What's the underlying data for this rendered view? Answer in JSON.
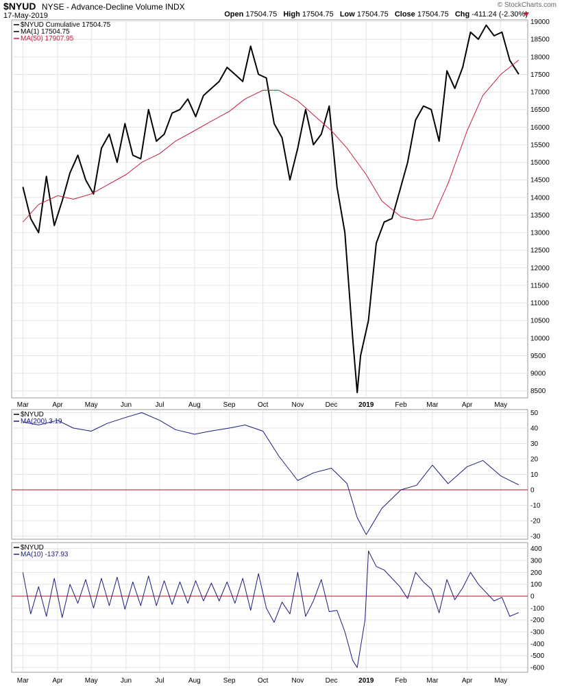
{
  "header": {
    "symbol": "$NYUD",
    "description": "NYSE - Advance-Decline Volume INDX",
    "date": "17-May-2019",
    "open_label": "Open",
    "open": "17504.75",
    "high_label": "High",
    "high": "17504.75",
    "low_label": "Low",
    "low": "17504.75",
    "close_label": "Close",
    "close": "17504.75",
    "chg_label": "Chg",
    "chg": "-411.24 (-2.30%)",
    "brand": "© StockCharts.com"
  },
  "colors": {
    "price": "#000000",
    "ma50": "#cc1a3a",
    "indicator": "#1a1a80",
    "zero_line": "#b0102a",
    "grid": "#e4e4e4",
    "frame": "#999999"
  },
  "chart_data": [
    {
      "type": "line",
      "panel": "price",
      "legend": [
        "$NYUD Cumulative 17504.75",
        "MA(1) 17504.75",
        "MA(50) 17907.95"
      ],
      "x_axis_labels": [
        "Mar",
        "Apr",
        "May",
        "Jun",
        "Jul",
        "Aug",
        "Sep",
        "Oct",
        "Nov",
        "Dec",
        "2019",
        "Feb",
        "Mar",
        "Apr",
        "May"
      ],
      "y_ticks": [
        8500,
        9000,
        9500,
        10000,
        10500,
        11000,
        11500,
        12000,
        12500,
        13000,
        13500,
        14000,
        14500,
        15000,
        15500,
        16000,
        16500,
        17000,
        17500,
        18000,
        18500,
        19000
      ],
      "ylim": [
        8300,
        19050
      ],
      "grid": true,
      "series": [
        {
          "name": "$NYUD Cumulative",
          "x": [
            "2018-03-01",
            "2018-03-08",
            "2018-03-15",
            "2018-03-22",
            "2018-03-29",
            "2018-04-05",
            "2018-04-12",
            "2018-04-19",
            "2018-04-26",
            "2018-05-03",
            "2018-05-10",
            "2018-05-17",
            "2018-05-24",
            "2018-05-31",
            "2018-06-07",
            "2018-06-14",
            "2018-06-21",
            "2018-06-28",
            "2018-07-05",
            "2018-07-12",
            "2018-07-19",
            "2018-07-26",
            "2018-08-02",
            "2018-08-09",
            "2018-08-16",
            "2018-08-23",
            "2018-08-30",
            "2018-09-06",
            "2018-09-13",
            "2018-09-20",
            "2018-09-27",
            "2018-10-04",
            "2018-10-11",
            "2018-10-18",
            "2018-10-25",
            "2018-11-01",
            "2018-11-08",
            "2018-11-15",
            "2018-11-22",
            "2018-11-29",
            "2018-12-06",
            "2018-12-13",
            "2018-12-20",
            "2018-12-24",
            "2018-12-27",
            "2019-01-03",
            "2019-01-10",
            "2019-01-17",
            "2019-01-24",
            "2019-01-31",
            "2019-02-07",
            "2019-02-14",
            "2019-02-21",
            "2019-02-28",
            "2019-03-07",
            "2019-03-14",
            "2019-03-21",
            "2019-03-28",
            "2019-04-04",
            "2019-04-11",
            "2019-04-18",
            "2019-04-25",
            "2019-05-02",
            "2019-05-09",
            "2019-05-17"
          ],
          "values": [
            14300,
            13400,
            13000,
            14600,
            13200,
            13900,
            14700,
            15200,
            14500,
            14100,
            15400,
            15800,
            15000,
            16100,
            15200,
            15100,
            16500,
            15600,
            15800,
            16400,
            16500,
            16800,
            16300,
            16900,
            17100,
            17300,
            17700,
            17500,
            17300,
            18300,
            17500,
            17400,
            16100,
            15700,
            14500,
            15400,
            16500,
            15500,
            15800,
            16600,
            14300,
            13000,
            10000,
            8450,
            9500,
            10500,
            12700,
            13300,
            13400,
            14200,
            15000,
            16200,
            16600,
            16500,
            15600,
            17600,
            17100,
            17700,
            18700,
            18500,
            18900,
            18600,
            18700,
            17900,
            17504.75
          ]
        },
        {
          "name": "MA(50)",
          "x": [
            "2018-03-01",
            "2018-03-15",
            "2018-04-01",
            "2018-04-15",
            "2018-05-01",
            "2018-05-15",
            "2018-06-01",
            "2018-06-15",
            "2018-07-01",
            "2018-07-15",
            "2018-08-01",
            "2018-08-15",
            "2018-09-01",
            "2018-09-15",
            "2018-10-01",
            "2018-10-15",
            "2018-11-01",
            "2018-11-15",
            "2018-12-01",
            "2018-12-15",
            "2019-01-01",
            "2019-01-15",
            "2019-02-01",
            "2019-02-15",
            "2019-03-01",
            "2019-03-15",
            "2019-04-01",
            "2019-04-15",
            "2019-05-01",
            "2019-05-17"
          ],
          "values": [
            13300,
            13800,
            14050,
            13950,
            14100,
            14350,
            14650,
            15000,
            15250,
            15600,
            15900,
            16150,
            16450,
            16800,
            17050,
            17050,
            16750,
            16350,
            15900,
            15400,
            14650,
            13900,
            13450,
            13350,
            13400,
            14400,
            15900,
            16900,
            17500,
            17907.95
          ]
        }
      ]
    },
    {
      "type": "line",
      "panel": "ma200",
      "legend": [
        "$NYUD",
        "MA(200) 3.19"
      ],
      "y_ticks": [
        -30,
        -20,
        -10,
        0,
        10,
        20,
        30,
        40,
        50
      ],
      "ylim": [
        -32,
        52
      ],
      "reference_line": 0,
      "grid": true,
      "series": [
        {
          "name": "MA(200)",
          "x": [
            "2018-03-01",
            "2018-03-15",
            "2018-04-01",
            "2018-04-15",
            "2018-05-01",
            "2018-05-15",
            "2018-06-01",
            "2018-06-15",
            "2018-07-01",
            "2018-07-15",
            "2018-08-01",
            "2018-08-15",
            "2018-09-01",
            "2018-09-15",
            "2018-10-01",
            "2018-10-15",
            "2018-11-01",
            "2018-11-15",
            "2018-12-01",
            "2018-12-15",
            "2018-12-24",
            "2019-01-01",
            "2019-01-15",
            "2019-02-01",
            "2019-02-15",
            "2019-03-01",
            "2019-03-15",
            "2019-04-01",
            "2019-04-15",
            "2019-05-01",
            "2019-05-17"
          ],
          "values": [
            44,
            42,
            45,
            40,
            38,
            43,
            47,
            50,
            45,
            39,
            36,
            38,
            40,
            42,
            38,
            22,
            6,
            11,
            14,
            4,
            -18,
            -29,
            -12,
            0,
            3,
            16,
            4,
            15,
            19,
            9,
            3.19
          ]
        }
      ]
    },
    {
      "type": "line",
      "panel": "ma10",
      "legend": [
        "$NYUD",
        "MA(10) -137.93"
      ],
      "y_ticks": [
        -600,
        -500,
        -400,
        -300,
        -200,
        -100,
        0,
        100,
        200,
        300,
        400
      ],
      "ylim": [
        -640,
        450
      ],
      "reference_line": 0,
      "grid": true,
      "series": [
        {
          "name": "MA(10)",
          "x": [
            "2018-03-01",
            "2018-03-08",
            "2018-03-15",
            "2018-03-22",
            "2018-03-29",
            "2018-04-05",
            "2018-04-12",
            "2018-04-19",
            "2018-04-26",
            "2018-05-03",
            "2018-05-10",
            "2018-05-17",
            "2018-05-24",
            "2018-05-31",
            "2018-06-07",
            "2018-06-14",
            "2018-06-21",
            "2018-06-28",
            "2018-07-05",
            "2018-07-12",
            "2018-07-19",
            "2018-07-26",
            "2018-08-02",
            "2018-08-09",
            "2018-08-16",
            "2018-08-23",
            "2018-08-30",
            "2018-09-06",
            "2018-09-13",
            "2018-09-20",
            "2018-09-27",
            "2018-10-04",
            "2018-10-11",
            "2018-10-18",
            "2018-10-25",
            "2018-11-01",
            "2018-11-08",
            "2018-11-15",
            "2018-11-22",
            "2018-11-29",
            "2018-12-06",
            "2018-12-13",
            "2018-12-20",
            "2018-12-24",
            "2018-12-31",
            "2019-01-03",
            "2019-01-10",
            "2019-01-17",
            "2019-01-24",
            "2019-01-31",
            "2019-02-07",
            "2019-02-14",
            "2019-02-21",
            "2019-02-28",
            "2019-03-07",
            "2019-03-14",
            "2019-03-21",
            "2019-03-28",
            "2019-04-04",
            "2019-04-11",
            "2019-04-18",
            "2019-04-25",
            "2019-05-02",
            "2019-05-09",
            "2019-05-17"
          ],
          "values": [
            200,
            -150,
            80,
            -170,
            150,
            -180,
            100,
            -60,
            140,
            -100,
            150,
            -80,
            160,
            -110,
            120,
            -80,
            170,
            -80,
            130,
            -70,
            120,
            -60,
            130,
            -40,
            110,
            -40,
            120,
            -60,
            150,
            -120,
            190,
            -100,
            -220,
            -50,
            -150,
            200,
            -170,
            -40,
            140,
            -130,
            -120,
            -300,
            -540,
            -600,
            -200,
            380,
            250,
            220,
            150,
            80,
            -20,
            200,
            120,
            60,
            -140,
            140,
            -30,
            70,
            200,
            100,
            30,
            -40,
            -10,
            -170,
            -137.93
          ]
        }
      ]
    }
  ]
}
